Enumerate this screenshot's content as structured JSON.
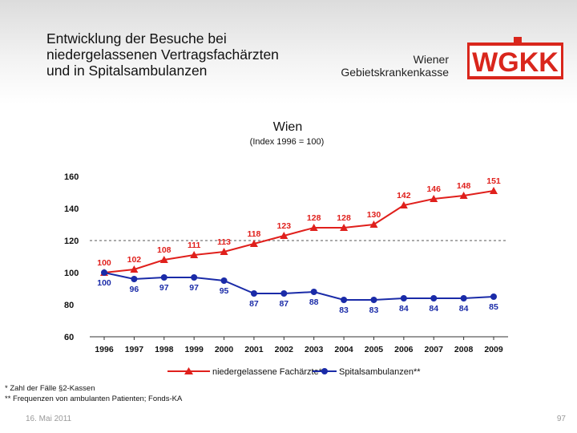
{
  "header": {
    "title_lines": [
      "Entwicklung der Besuche bei",
      "niedergelassenen Vertragsfachärzten",
      "und in Spitalsambulanzen"
    ],
    "org_lines": [
      "Wiener",
      "Gebietskrankenkasse"
    ],
    "logo_text": "WGKK"
  },
  "chart_data": {
    "type": "line",
    "title": "Wien",
    "subtitle": "(Index 1996 = 100)",
    "categories": [
      "1996",
      "1997",
      "1998",
      "1999",
      "2000",
      "2001",
      "2002",
      "2003",
      "2004",
      "2005",
      "2006",
      "2007",
      "2008",
      "2009"
    ],
    "ylim": [
      60,
      160
    ],
    "yticks": [
      "60",
      "80",
      "100",
      "120",
      "140",
      "160"
    ],
    "reference_line": 120,
    "series": [
      {
        "name": "niedergelassene Fachärzte*",
        "color": "#e0201c",
        "marker": "triangle",
        "values": [
          100,
          102,
          108,
          111,
          113,
          118,
          123,
          128,
          128,
          130,
          142,
          146,
          148,
          151
        ]
      },
      {
        "name": "Spitalsambulanzen**",
        "color": "#1a2ba8",
        "marker": "circle",
        "values": [
          100,
          96,
          97,
          97,
          95,
          87,
          87,
          88,
          83,
          83,
          84,
          84,
          84,
          85
        ]
      }
    ],
    "legend_position": "bottom"
  },
  "footnotes": [
    "*   Zahl der Fälle §2-Kassen",
    "** Frequenzen von ambulanten Patienten; Fonds-KA"
  ],
  "footer": {
    "date": "16. Mai 2011",
    "page": "97"
  }
}
